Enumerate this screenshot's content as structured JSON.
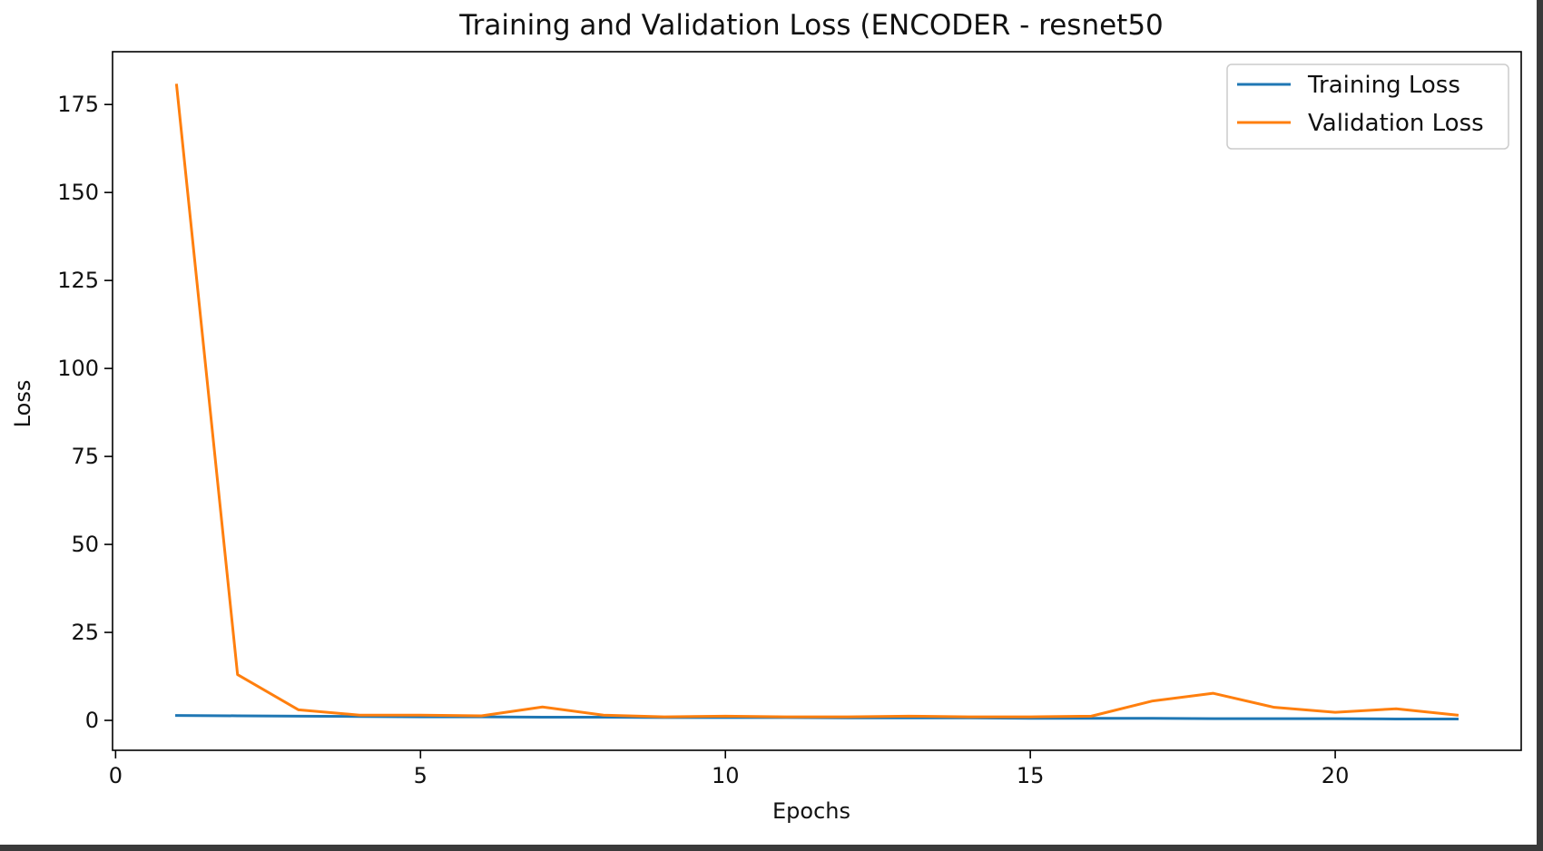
{
  "chart_data": {
    "type": "line",
    "title": "Training and Validation Loss (ENCODER - resnet50",
    "xlabel": "Epochs",
    "ylabel": "Loss",
    "xlim": [
      -0.05,
      23.05
    ],
    "ylim": [
      -8.5,
      190.0
    ],
    "xticks": [
      0,
      5,
      10,
      15,
      20
    ],
    "yticks": [
      0,
      25,
      50,
      75,
      100,
      125,
      150,
      175
    ],
    "grid": false,
    "legend_position": "top-right",
    "x": [
      1,
      2,
      3,
      4,
      5,
      6,
      7,
      8,
      9,
      10,
      11,
      12,
      13,
      14,
      15,
      16,
      17,
      18,
      19,
      20,
      21,
      22
    ],
    "series": [
      {
        "name": "Training Loss",
        "color": "#1f77b4",
        "values": [
          1.4,
          1.3,
          1.2,
          1.1,
          1.0,
          1.0,
          0.9,
          0.9,
          0.8,
          0.8,
          0.8,
          0.7,
          0.7,
          0.7,
          0.6,
          0.6,
          0.6,
          0.5,
          0.5,
          0.5,
          0.4,
          0.4
        ]
      },
      {
        "name": "Validation Loss",
        "color": "#ff7f0e",
        "values": [
          180.5,
          13.0,
          3.0,
          1.5,
          1.5,
          1.3,
          3.8,
          1.5,
          1.0,
          1.2,
          1.0,
          1.0,
          1.2,
          1.0,
          1.0,
          1.2,
          5.5,
          7.7,
          3.7,
          2.3,
          3.3,
          1.5
        ]
      }
    ]
  }
}
